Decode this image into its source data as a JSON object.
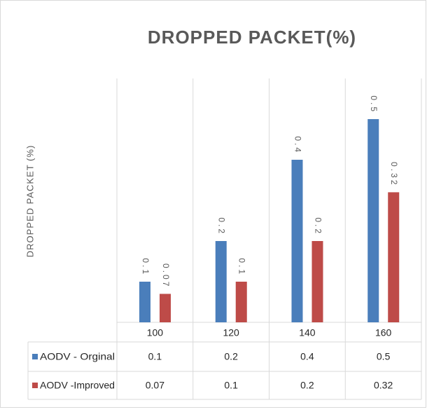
{
  "chart_data": {
    "type": "bar",
    "title": "DROPPED PACKET(%)",
    "y_label": "DROPPED PACKET (%)",
    "categories": [
      "100",
      "120",
      "140",
      "160"
    ],
    "series": [
      {
        "name": "AODV - Orginal",
        "color": "#4a7ebb",
        "values": [
          0.1,
          0.2,
          0.4,
          0.5
        ]
      },
      {
        "name": "AODV -Improved",
        "color": "#be4b48",
        "values": [
          0.07,
          0.1,
          0.2,
          0.32
        ]
      }
    ],
    "ylim": [
      0,
      0.6
    ],
    "data_table": true
  }
}
